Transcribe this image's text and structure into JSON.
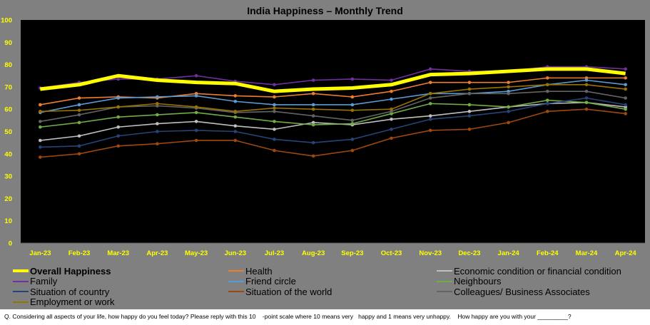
{
  "chart_data": {
    "type": "line",
    "title": "India Happiness – Monthly Trend",
    "xlabel": "",
    "ylabel": "",
    "ylim": [
      0,
      100
    ],
    "yticks": [
      0,
      10,
      20,
      30,
      40,
      50,
      60,
      70,
      80,
      90,
      100
    ],
    "grid": false,
    "legend_placement": "bottom",
    "categories": [
      "Jan-23",
      "Feb-23",
      "Mar-23",
      "Apr-23",
      "May-23",
      "Jun-23",
      "Jul-23",
      "Aug-23",
      "Sep-23",
      "Oct-23",
      "Nov-23",
      "Dec-23",
      "Jan-24",
      "Feb-24",
      "Mar-24",
      "Apr-24"
    ],
    "series": [
      {
        "name": "Overall Happiness",
        "color": "#ffff00",
        "thick": true,
        "values": [
          69,
          71,
          75,
          73,
          72,
          71.5,
          68,
          69,
          69.5,
          71,
          75.5,
          76,
          77,
          78,
          78,
          76
        ]
      },
      {
        "name": "Health",
        "color": "#ed7d31",
        "values": [
          62,
          65,
          65.5,
          65,
          67,
          66,
          65.5,
          67,
          65.5,
          68,
          72,
          72,
          72,
          74,
          74,
          74
        ]
      },
      {
        "name": "Economic condition or financial condition",
        "color": "#bfbfbf",
        "values": [
          46,
          48,
          52,
          53.5,
          54.5,
          52.5,
          51,
          54,
          53,
          55.5,
          57,
          59,
          61,
          62.5,
          63,
          61
        ]
      },
      {
        "name": "Family",
        "color": "#7030a0",
        "values": [
          69.5,
          72,
          73.5,
          73.5,
          75,
          72.5,
          71,
          73,
          73.5,
          73,
          78,
          77,
          77,
          79,
          79,
          78
        ]
      },
      {
        "name": "Friend circle",
        "color": "#5b9bd5",
        "values": [
          58.5,
          62,
          65,
          65.5,
          66,
          63.5,
          62,
          62,
          62,
          64.5,
          67,
          67,
          68,
          71,
          73,
          71
        ]
      },
      {
        "name": "Neighbours",
        "color": "#70ad47",
        "values": [
          52,
          54,
          56.5,
          57.5,
          58.5,
          56.5,
          54.5,
          53,
          53.5,
          58,
          62.5,
          62,
          61,
          64,
          63,
          60
        ]
      },
      {
        "name": "Situation of country",
        "color": "#264478",
        "values": [
          43,
          43.5,
          48,
          50,
          50.5,
          50,
          46.5,
          45,
          46.5,
          51,
          55.5,
          57,
          59,
          62.5,
          65,
          62
        ]
      },
      {
        "name": "Situation of the world",
        "color": "#9e480e",
        "values": [
          38.5,
          40,
          43.5,
          44.5,
          46,
          46,
          41.5,
          39,
          41.5,
          47,
          50.5,
          51,
          54,
          59,
          60,
          58
        ]
      },
      {
        "name": "Colleagues/ Business Associates",
        "color": "#636363",
        "values": [
          54.5,
          57.5,
          61,
          61.5,
          60.5,
          58.5,
          59,
          57,
          55,
          59,
          65,
          67,
          67,
          68,
          68,
          65
        ]
      },
      {
        "name": "Employment or work",
        "color": "#997300",
        "values": [
          59,
          59.5,
          61,
          62.5,
          61,
          59,
          60.5,
          60,
          59.5,
          60,
          67,
          69,
          70,
          71,
          71,
          69
        ]
      }
    ]
  },
  "footer": "Q. Considering all aspects of your life, how happy do you feel today? Please reply with this 10    -point scale where 10 means very   happy and 1 means very unhappy.    How happy are you with your _________?"
}
